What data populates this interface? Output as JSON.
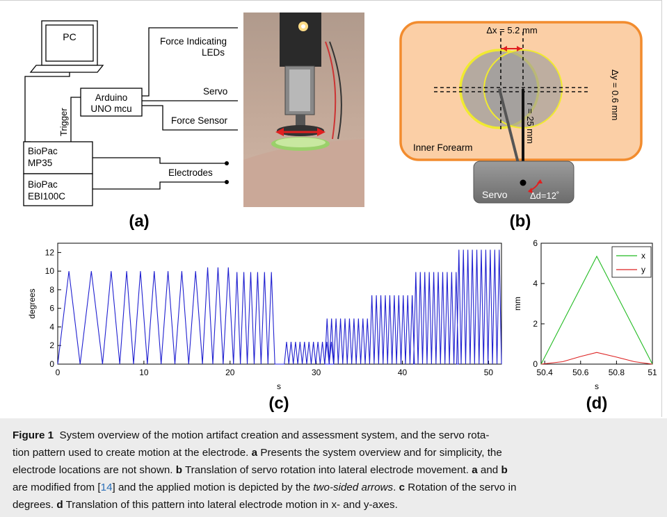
{
  "panel_a": {
    "label": "(a)",
    "pc": "PC",
    "arduino_line1": "Arduino",
    "arduino_line2": "UNO mcu",
    "mp35_line1": "BioPac",
    "mp35_line2": "MP35",
    "ebi_line1": "BioPac",
    "ebi_line2": "EBI100C",
    "trigger": "Trigger",
    "force_leds_line1": "Force Indicating",
    "force_leds_line2": "LEDs",
    "servo": "Servo",
    "force_sensor": "Force Sensor",
    "electrodes": "Electrodes"
  },
  "panel_b": {
    "label": "(b)",
    "dx": "Δx = 5.2 mm",
    "dy": "Δy = 0.6 mm",
    "r": "r = 25 mm",
    "inner_forearm": "Inner Forearm",
    "servo": "Servo",
    "dd": "Δd=12˚"
  },
  "panel_c": {
    "label": "(c)"
  },
  "panel_d": {
    "label": "(d)"
  },
  "chart_data": [
    {
      "type": "line",
      "xlabel": "s",
      "ylabel": "degrees",
      "xlim": [
        0,
        51.5
      ],
      "ylim": [
        0,
        13
      ],
      "x_ticks": [
        0,
        10,
        20,
        30,
        40,
        50
      ],
      "y_ticks": [
        0,
        2,
        4,
        6,
        8,
        10,
        12
      ],
      "grid": false,
      "color": "#1f1fd0",
      "segments": [
        {
          "start": 0,
          "period": 2.6,
          "count": 2,
          "amp": 10
        },
        {
          "start": 5.2,
          "period": 2.0,
          "count": 1,
          "amp": 10
        },
        {
          "start": 7.2,
          "period": 1.6,
          "count": 6,
          "amp": 10
        },
        {
          "start": 16.8,
          "period": 1.2,
          "count": 3,
          "amp": 10.4
        },
        {
          "start": 20.4,
          "period": 0.8,
          "count": 6,
          "amp": 9.9
        },
        {
          "start": 26.3,
          "period": 0.52,
          "count": 11,
          "amp": 2.4
        },
        {
          "start": 31.0,
          "period": 0.52,
          "count": 10,
          "amp": 4.9
        },
        {
          "start": 36.2,
          "period": 0.52,
          "count": 10,
          "amp": 7.4
        },
        {
          "start": 41.3,
          "period": 0.52,
          "count": 10,
          "amp": 9.9
        },
        {
          "start": 46.3,
          "period": 0.52,
          "count": 10,
          "amp": 12.3
        }
      ]
    },
    {
      "type": "line",
      "xlabel": "s",
      "ylabel": "mm",
      "xlim": [
        50.38,
        51
      ],
      "ylim": [
        0,
        6
      ],
      "x_ticks": [
        50.4,
        50.6,
        50.8,
        51
      ],
      "y_ticks": [
        0,
        2,
        4,
        6
      ],
      "legend_position": "top-right",
      "series": [
        {
          "name": "x",
          "color": "#22bb22",
          "x": [
            50.38,
            50.69,
            51.0
          ],
          "values": [
            0,
            5.35,
            0
          ]
        },
        {
          "name": "y",
          "color": "#dd2222",
          "x": [
            50.38,
            50.5,
            50.6,
            50.69,
            50.8,
            50.9,
            51.0
          ],
          "values": [
            0,
            0.12,
            0.38,
            0.58,
            0.35,
            0.12,
            0
          ]
        }
      ]
    }
  ],
  "caption": {
    "fig_label": "Figure 1",
    "line1": "System overview of the motion artifact creation and assessment system, and the servo rota-",
    "line2": "tion pattern used to create motion at the electrode.",
    "a_label": "a",
    "a_text": "Presents the system overview and for simplicity, the",
    "line3": "electrode locations are not shown.",
    "b_label": "b",
    "b_text": "Translation of servo rotation into lateral electrode movement.",
    "ab_a": "a",
    "ab_and": "and",
    "ab_b": "b",
    "line4a": "are modified from [",
    "ref": "14",
    "line4b": "] and the applied motion is depicted by the",
    "arrows": "two-sided arrows",
    "period": ".",
    "c_label": "c",
    "c_text": "Rotation of the servo in",
    "line5": "degrees.",
    "d_label": "d",
    "d_text": "Translation of this pattern into lateral electrode motion in x- and y-axes."
  }
}
